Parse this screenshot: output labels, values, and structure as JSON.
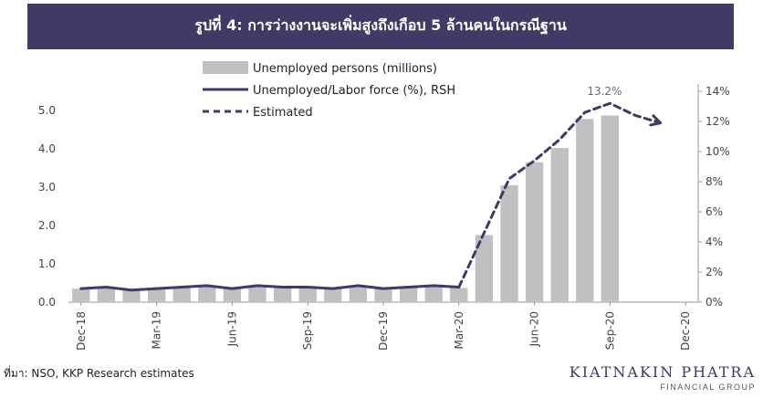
{
  "title": "รูปที่ 4: การว่างงานจะเพิ่มสูงถึงเกือบ 5 ล้านคนในกรณีฐาน",
  "source": "ที่มา: NSO, KKP Research estimates",
  "logo": {
    "name": "KIATNAKIN PHATRA",
    "sub": "FINANCIAL GROUP"
  },
  "colors": {
    "banner": "#3f3a66",
    "bars": "#c0c0c0",
    "line": "#3f3a66"
  },
  "chart_data": {
    "type": "bar",
    "categories": [
      "Dec-18",
      "Jan-19",
      "Feb-19",
      "Mar-19",
      "Apr-19",
      "May-19",
      "Jun-19",
      "Jul-19",
      "Aug-19",
      "Sep-19",
      "Oct-19",
      "Nov-19",
      "Dec-19",
      "Jan-20",
      "Feb-20",
      "Mar-20",
      "Apr-20",
      "May-20",
      "Jun-20",
      "Jul-20",
      "Aug-20",
      "Sep-20",
      "Oct-20",
      "Nov-20",
      "Dec-20"
    ],
    "x_tick_labels": [
      "Dec-18",
      "Mar-19",
      "Jun-19",
      "Sep-19",
      "Dec-19",
      "Mar-20",
      "Jun-20",
      "Sep-20",
      "Dec-20"
    ],
    "ylim_left": [
      0,
      5.5
    ],
    "yticks_left": [
      "0.0",
      "1.0",
      "2.0",
      "3.0",
      "4.0",
      "5.0"
    ],
    "ylim_right": [
      0,
      14
    ],
    "yticks_right": [
      "0%",
      "2%",
      "4%",
      "6%",
      "8%",
      "10%",
      "12%",
      "14%"
    ],
    "series": [
      {
        "name": "Unemployed persons (millions)",
        "type": "bar",
        "axis": "left",
        "values": [
          0.35,
          0.37,
          0.32,
          0.35,
          0.37,
          0.41,
          0.35,
          0.41,
          0.37,
          0.37,
          0.35,
          0.41,
          0.35,
          0.39,
          0.41,
          0.37,
          1.75,
          3.05,
          3.65,
          4.02,
          4.78,
          4.87,
          null,
          null,
          null
        ]
      },
      {
        "name": "Unemployed/Labor force (%), RSH",
        "type": "line",
        "axis": "right",
        "values": [
          0.9,
          1.0,
          0.8,
          0.9,
          1.0,
          1.1,
          0.9,
          1.1,
          1.0,
          1.0,
          0.9,
          1.1,
          0.9,
          1.0,
          1.1,
          1.0,
          null,
          null,
          null,
          null,
          null,
          null,
          null,
          null,
          null
        ]
      },
      {
        "name": "Estimated",
        "type": "dashed-line",
        "axis": "right",
        "values": [
          null,
          null,
          null,
          null,
          null,
          null,
          null,
          null,
          null,
          null,
          null,
          null,
          null,
          null,
          null,
          1.0,
          4.6,
          8.2,
          9.4,
          10.8,
          12.6,
          13.2,
          12.4,
          11.9,
          null
        ]
      }
    ],
    "annotations": [
      {
        "text": "13.2%",
        "category": "Sep-20"
      }
    ]
  }
}
